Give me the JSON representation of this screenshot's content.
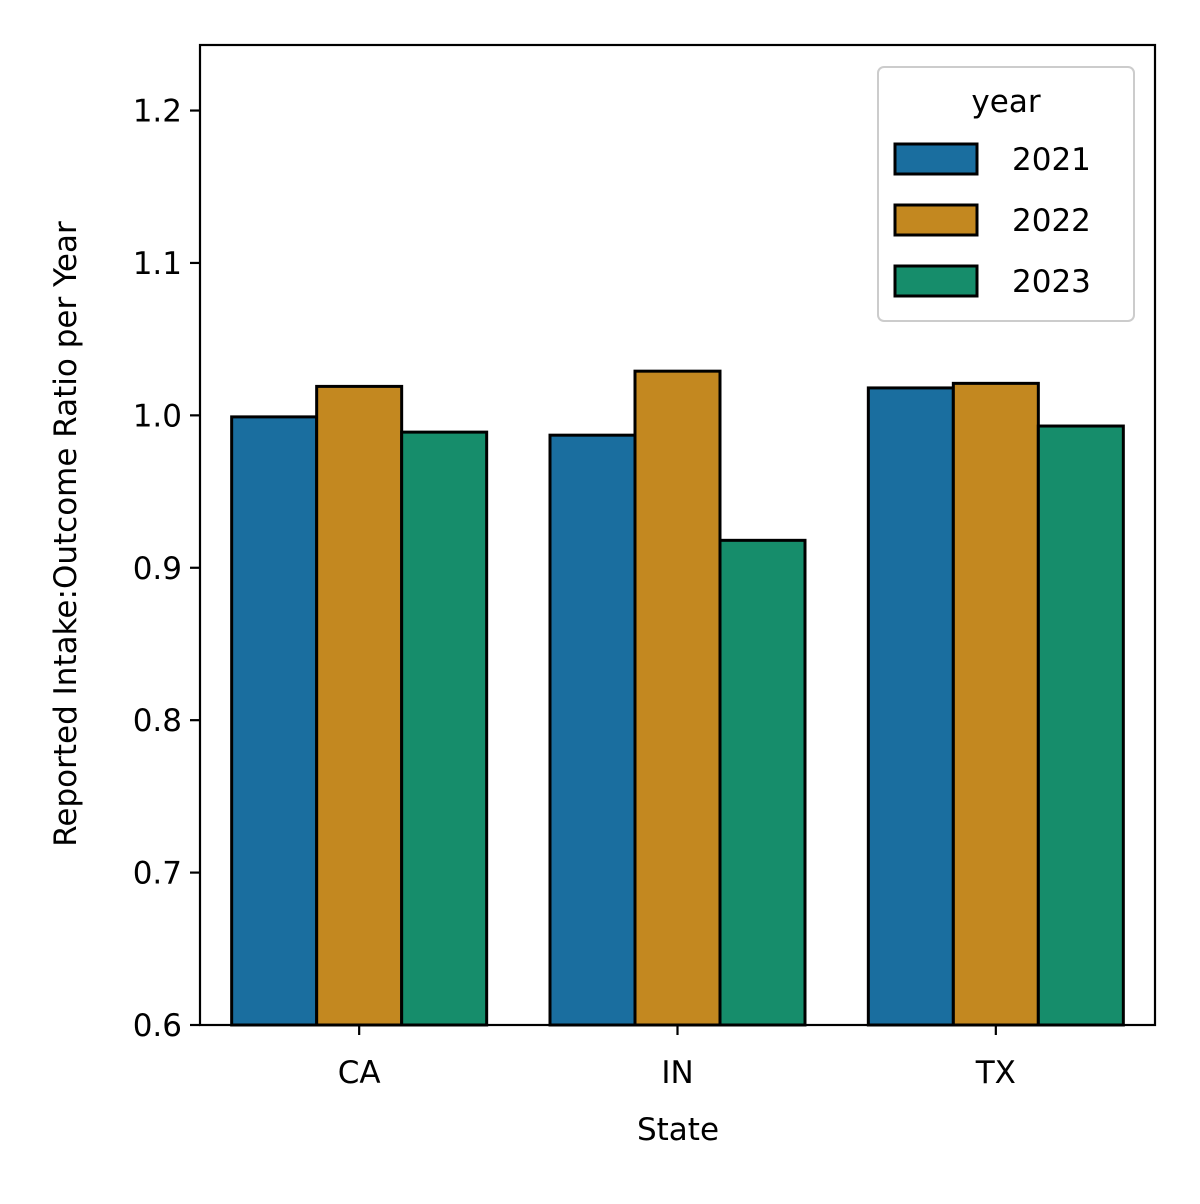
{
  "chart_data": {
    "type": "bar",
    "title": "",
    "xlabel": "State",
    "ylabel": "Reported Intake:Outcome Ratio per Year",
    "categories": [
      "CA",
      "IN",
      "TX"
    ],
    "series": [
      {
        "name": "2021",
        "color": "#1a6e9f",
        "values": [
          0.999,
          0.987,
          1.018
        ]
      },
      {
        "name": "2022",
        "color": "#c38820",
        "values": [
          1.019,
          1.029,
          1.021
        ]
      },
      {
        "name": "2023",
        "color": "#168d6b",
        "values": [
          0.989,
          0.918,
          0.993
        ]
      }
    ],
    "ylim": [
      0.6,
      1.243
    ],
    "yticks": [
      0.6,
      0.7,
      0.8,
      0.9,
      1.0,
      1.1,
      1.2
    ],
    "ytick_labels": [
      "0.6",
      "0.7",
      "0.8",
      "0.9",
      "1.0",
      "1.1",
      "1.2"
    ],
    "grid": false,
    "legend": {
      "title": "year",
      "position": "top-right"
    }
  }
}
